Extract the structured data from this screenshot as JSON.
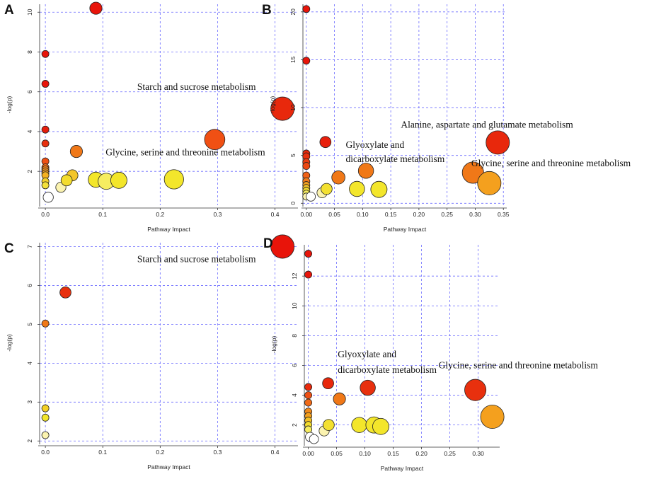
{
  "colors": {
    "high_significance": "#e8140a",
    "mid_significance": "#f07818",
    "low_significance": "#f3e62b",
    "lowest_significance": "#ffffff",
    "grid": "#6b6bff"
  },
  "chart_data": [
    {
      "id": "A",
      "type": "scatter",
      "panel_label": "A",
      "xlabel": "Pathway Impact",
      "ylabel": "-log(p)",
      "xlim": [
        -0.01,
        0.44
      ],
      "ylim": [
        0.3,
        10.4
      ],
      "xticks": [
        0.0,
        0.1,
        0.2,
        0.3,
        0.4
      ],
      "xtick_labels": [
        "0.0",
        "0.1",
        "0.2",
        "0.3",
        "0.4"
      ],
      "yticks": [
        2,
        4,
        6,
        8,
        10
      ],
      "ytick_labels": [
        "2",
        "4",
        "6",
        "8",
        "10"
      ],
      "points": [
        {
          "x": 0.088,
          "y": 10.2,
          "color": "#e8140a",
          "size": 1.2
        },
        {
          "x": 0.0,
          "y": 7.9,
          "color": "#e8140a",
          "size": 0.7
        },
        {
          "x": 0.0,
          "y": 6.4,
          "color": "#e8140a",
          "size": 0.7
        },
        {
          "x": 0.0,
          "y": 4.1,
          "color": "#e61e0d",
          "size": 0.7
        },
        {
          "x": 0.0,
          "y": 3.4,
          "color": "#e83010",
          "size": 0.7
        },
        {
          "x": 0.0,
          "y": 2.5,
          "color": "#f05014",
          "size": 0.7
        },
        {
          "x": 0.0,
          "y": 2.2,
          "color": "#f06a18",
          "size": 0.7
        },
        {
          "x": 0.0,
          "y": 2.1,
          "color": "#f2801a",
          "size": 0.7
        },
        {
          "x": 0.0,
          "y": 2.0,
          "color": "#f28e1c",
          "size": 0.7
        },
        {
          "x": 0.0,
          "y": 1.9,
          "color": "#f4a01e",
          "size": 0.7
        },
        {
          "x": 0.0,
          "y": 1.8,
          "color": "#f4b020",
          "size": 0.7
        },
        {
          "x": 0.0,
          "y": 1.5,
          "color": "#f3d028",
          "size": 0.7
        },
        {
          "x": 0.0,
          "y": 1.3,
          "color": "#f3e03a",
          "size": 0.7
        },
        {
          "x": 0.054,
          "y": 3.0,
          "color": "#f07818",
          "size": 1.2
        },
        {
          "x": 0.047,
          "y": 1.8,
          "color": "#f3c52a",
          "size": 1.1
        },
        {
          "x": 0.037,
          "y": 1.55,
          "color": "#f3dc2e",
          "size": 1.1
        },
        {
          "x": 0.027,
          "y": 1.2,
          "color": "#fbf3b0",
          "size": 1.0
        },
        {
          "x": 0.005,
          "y": 0.7,
          "color": "#ffffff",
          "size": 1.0
        },
        {
          "x": 0.088,
          "y": 1.58,
          "color": "#f3e62b",
          "size": 1.5
        },
        {
          "x": 0.106,
          "y": 1.5,
          "color": "#f6ed60",
          "size": 1.6
        },
        {
          "x": 0.128,
          "y": 1.55,
          "color": "#f3e62b",
          "size": 1.6
        },
        {
          "x": 0.224,
          "y": 1.6,
          "color": "#f3e62b",
          "size": 1.9
        },
        {
          "x": 0.295,
          "y": 3.6,
          "color": "#f05014",
          "size": 2.0
        },
        {
          "x": 0.413,
          "y": 5.15,
          "color": "#e8280c",
          "size": 2.3
        }
      ],
      "annotations": [
        {
          "text": "Starch and sucrose metabolism",
          "x": 0.16,
          "y": 6.1
        },
        {
          "text": "Glycine, serine and threonine metabolism",
          "x": 0.105,
          "y": 2.8
        }
      ]
    },
    {
      "id": "B",
      "type": "scatter",
      "panel_label": "B",
      "xlabel": "Pathway Impact",
      "ylabel": "-log(p)",
      "xlim": [
        -0.006,
        0.356
      ],
      "ylim": [
        -0.2,
        20.8
      ],
      "xticks": [
        0.0,
        0.05,
        0.1,
        0.15,
        0.2,
        0.25,
        0.3,
        0.35
      ],
      "xtick_labels": [
        "0.00",
        "0.05",
        "0.10",
        "0.15",
        "0.20",
        "0.25",
        "0.30",
        "0.35"
      ],
      "yticks": [
        0,
        5,
        10,
        15,
        20
      ],
      "ytick_labels": [
        "0",
        "5",
        "10",
        "15",
        "20"
      ],
      "points": [
        {
          "x": 0.0,
          "y": 20.3,
          "color": "#e8140a",
          "size": 0.7
        },
        {
          "x": 0.0,
          "y": 14.9,
          "color": "#e8140a",
          "size": 0.7
        },
        {
          "x": 0.0,
          "y": 5.2,
          "color": "#e8280c",
          "size": 0.7
        },
        {
          "x": 0.0,
          "y": 4.9,
          "color": "#e8300e",
          "size": 0.7
        },
        {
          "x": 0.0,
          "y": 4.3,
          "color": "#ea3c10",
          "size": 0.7
        },
        {
          "x": 0.0,
          "y": 3.9,
          "color": "#ec4812",
          "size": 0.7
        },
        {
          "x": 0.0,
          "y": 2.9,
          "color": "#f06016",
          "size": 0.7
        },
        {
          "x": 0.0,
          "y": 2.3,
          "color": "#f27a1a",
          "size": 0.7
        },
        {
          "x": 0.0,
          "y": 1.9,
          "color": "#f4a01e",
          "size": 0.7
        },
        {
          "x": 0.0,
          "y": 1.6,
          "color": "#f3c026",
          "size": 0.7
        },
        {
          "x": 0.0,
          "y": 1.3,
          "color": "#f3dc2e",
          "size": 0.7
        },
        {
          "x": 0.0,
          "y": 1.0,
          "color": "#f6ed60",
          "size": 0.7
        },
        {
          "x": 0.0,
          "y": 0.7,
          "color": "#fbf3b0",
          "size": 0.7
        },
        {
          "x": 0.034,
          "y": 6.4,
          "color": "#e8200c",
          "size": 1.1
        },
        {
          "x": 0.057,
          "y": 2.7,
          "color": "#f07818",
          "size": 1.3
        },
        {
          "x": 0.036,
          "y": 1.5,
          "color": "#f3e030",
          "size": 1.1
        },
        {
          "x": 0.028,
          "y": 1.1,
          "color": "#fbf3b0",
          "size": 1.0
        },
        {
          "x": 0.008,
          "y": 0.7,
          "color": "#ffffff",
          "size": 0.9
        },
        {
          "x": 0.09,
          "y": 1.5,
          "color": "#f3e62b",
          "size": 1.5
        },
        {
          "x": 0.106,
          "y": 3.4,
          "color": "#f07818",
          "size": 1.5
        },
        {
          "x": 0.129,
          "y": 1.45,
          "color": "#f3e62b",
          "size": 1.6
        },
        {
          "x": 0.296,
          "y": 3.2,
          "color": "#f07818",
          "size": 2.1
        },
        {
          "x": 0.325,
          "y": 2.1,
          "color": "#f4a01e",
          "size": 2.3
        },
        {
          "x": 0.34,
          "y": 6.35,
          "color": "#e8280c",
          "size": 2.3
        }
      ],
      "annotations": [
        {
          "text": "Alanine, aspartate and glutamate metabolism",
          "x": 0.168,
          "y": 7.9
        },
        {
          "text": "Glyoxylate and",
          "x": 0.07,
          "y": 5.8
        },
        {
          "text": "dicarboxylate metabolism",
          "x": 0.07,
          "y": 4.3
        },
        {
          "text": "Glycine, serine and threonine metabolism",
          "x": 0.293,
          "y": 3.85
        }
      ]
    },
    {
      "id": "C",
      "type": "scatter",
      "panel_label": "C",
      "xlabel": "Pathway Impact",
      "ylabel": "-log(p)",
      "xlim": [
        -0.01,
        0.44
      ],
      "ylim": [
        1.95,
        7.1
      ],
      "xticks": [
        0.0,
        0.1,
        0.2,
        0.3,
        0.4
      ],
      "xtick_labels": [
        "0.0",
        "0.1",
        "0.2",
        "0.3",
        "0.4"
      ],
      "yticks": [
        2,
        3,
        4,
        5,
        6,
        7
      ],
      "ytick_labels": [
        "2",
        "3",
        "4",
        "5",
        "6",
        "7"
      ],
      "points": [
        {
          "x": 0.413,
          "y": 7.0,
          "color": "#e8140a",
          "size": 2.3
        },
        {
          "x": 0.035,
          "y": 5.82,
          "color": "#e8300e",
          "size": 1.1
        },
        {
          "x": 0.0,
          "y": 5.02,
          "color": "#f07818",
          "size": 0.7
        },
        {
          "x": 0.0,
          "y": 2.84,
          "color": "#f3d028",
          "size": 0.7
        },
        {
          "x": 0.0,
          "y": 2.6,
          "color": "#f3e62b",
          "size": 0.7
        },
        {
          "x": 0.0,
          "y": 2.15,
          "color": "#fbf3b0",
          "size": 0.7
        }
      ],
      "annotations": [
        {
          "text": "Starch and sucrose metabolism",
          "x": 0.16,
          "y": 6.6
        }
      ]
    },
    {
      "id": "D",
      "type": "scatter",
      "panel_label": "D",
      "xlabel": "Pathway Impact",
      "ylabel": "-log(p)",
      "xlim": [
        -0.007,
        0.338
      ],
      "ylim": [
        0.7,
        14.1
      ],
      "xticks": [
        0.0,
        0.05,
        0.1,
        0.15,
        0.2,
        0.25,
        0.3
      ],
      "xtick_labels": [
        "0.00",
        "0.05",
        "0.10",
        "0.15",
        "0.20",
        "0.25",
        "0.30"
      ],
      "yticks": [
        2,
        4,
        6,
        8,
        10,
        12
      ],
      "ytick_labels": [
        "2",
        "4",
        "6",
        "8",
        "10",
        "12"
      ],
      "points": [
        {
          "x": 0.0,
          "y": 13.5,
          "color": "#e8140a",
          "size": 0.7
        },
        {
          "x": 0.0,
          "y": 12.1,
          "color": "#e8140a",
          "size": 0.7
        },
        {
          "x": 0.0,
          "y": 4.55,
          "color": "#e8280c",
          "size": 0.7
        },
        {
          "x": 0.0,
          "y": 4.0,
          "color": "#ee5014",
          "size": 0.7
        },
        {
          "x": 0.0,
          "y": 3.5,
          "color": "#f06a18",
          "size": 0.7
        },
        {
          "x": 0.0,
          "y": 2.9,
          "color": "#f28a1c",
          "size": 0.7
        },
        {
          "x": 0.0,
          "y": 2.6,
          "color": "#f4a01e",
          "size": 0.7
        },
        {
          "x": 0.0,
          "y": 2.3,
          "color": "#f3c026",
          "size": 0.7
        },
        {
          "x": 0.0,
          "y": 2.0,
          "color": "#f3dc2e",
          "size": 0.7
        },
        {
          "x": 0.0,
          "y": 1.7,
          "color": "#f6ed60",
          "size": 0.7
        },
        {
          "x": 0.035,
          "y": 4.8,
          "color": "#e8280c",
          "size": 1.1
        },
        {
          "x": 0.055,
          "y": 3.75,
          "color": "#f07818",
          "size": 1.2
        },
        {
          "x": 0.036,
          "y": 2.0,
          "color": "#f3e030",
          "size": 1.1
        },
        {
          "x": 0.028,
          "y": 1.6,
          "color": "#fbf3b0",
          "size": 1.0
        },
        {
          "x": 0.003,
          "y": 1.2,
          "color": "#ffffff",
          "size": 0.9
        },
        {
          "x": 0.01,
          "y": 1.05,
          "color": "#ffffff",
          "size": 0.9
        },
        {
          "x": 0.09,
          "y": 2.0,
          "color": "#f3e62b",
          "size": 1.5
        },
        {
          "x": 0.105,
          "y": 4.5,
          "color": "#e8300e",
          "size": 1.5
        },
        {
          "x": 0.116,
          "y": 2.0,
          "color": "#f3e62b",
          "size": 1.6
        },
        {
          "x": 0.128,
          "y": 1.9,
          "color": "#f3e62b",
          "size": 1.6
        },
        {
          "x": 0.295,
          "y": 4.35,
          "color": "#e8300e",
          "size": 2.1
        },
        {
          "x": 0.325,
          "y": 2.55,
          "color": "#f4a01e",
          "size": 2.3
        }
      ],
      "annotations": [
        {
          "text": "Glyoxylate and",
          "x": 0.052,
          "y": 6.55
        },
        {
          "text": "dicarboxylate metabolism",
          "x": 0.052,
          "y": 5.5
        },
        {
          "text": "Glycine, serine and threonine metabolism",
          "x": 0.23,
          "y": 5.8
        }
      ]
    }
  ]
}
